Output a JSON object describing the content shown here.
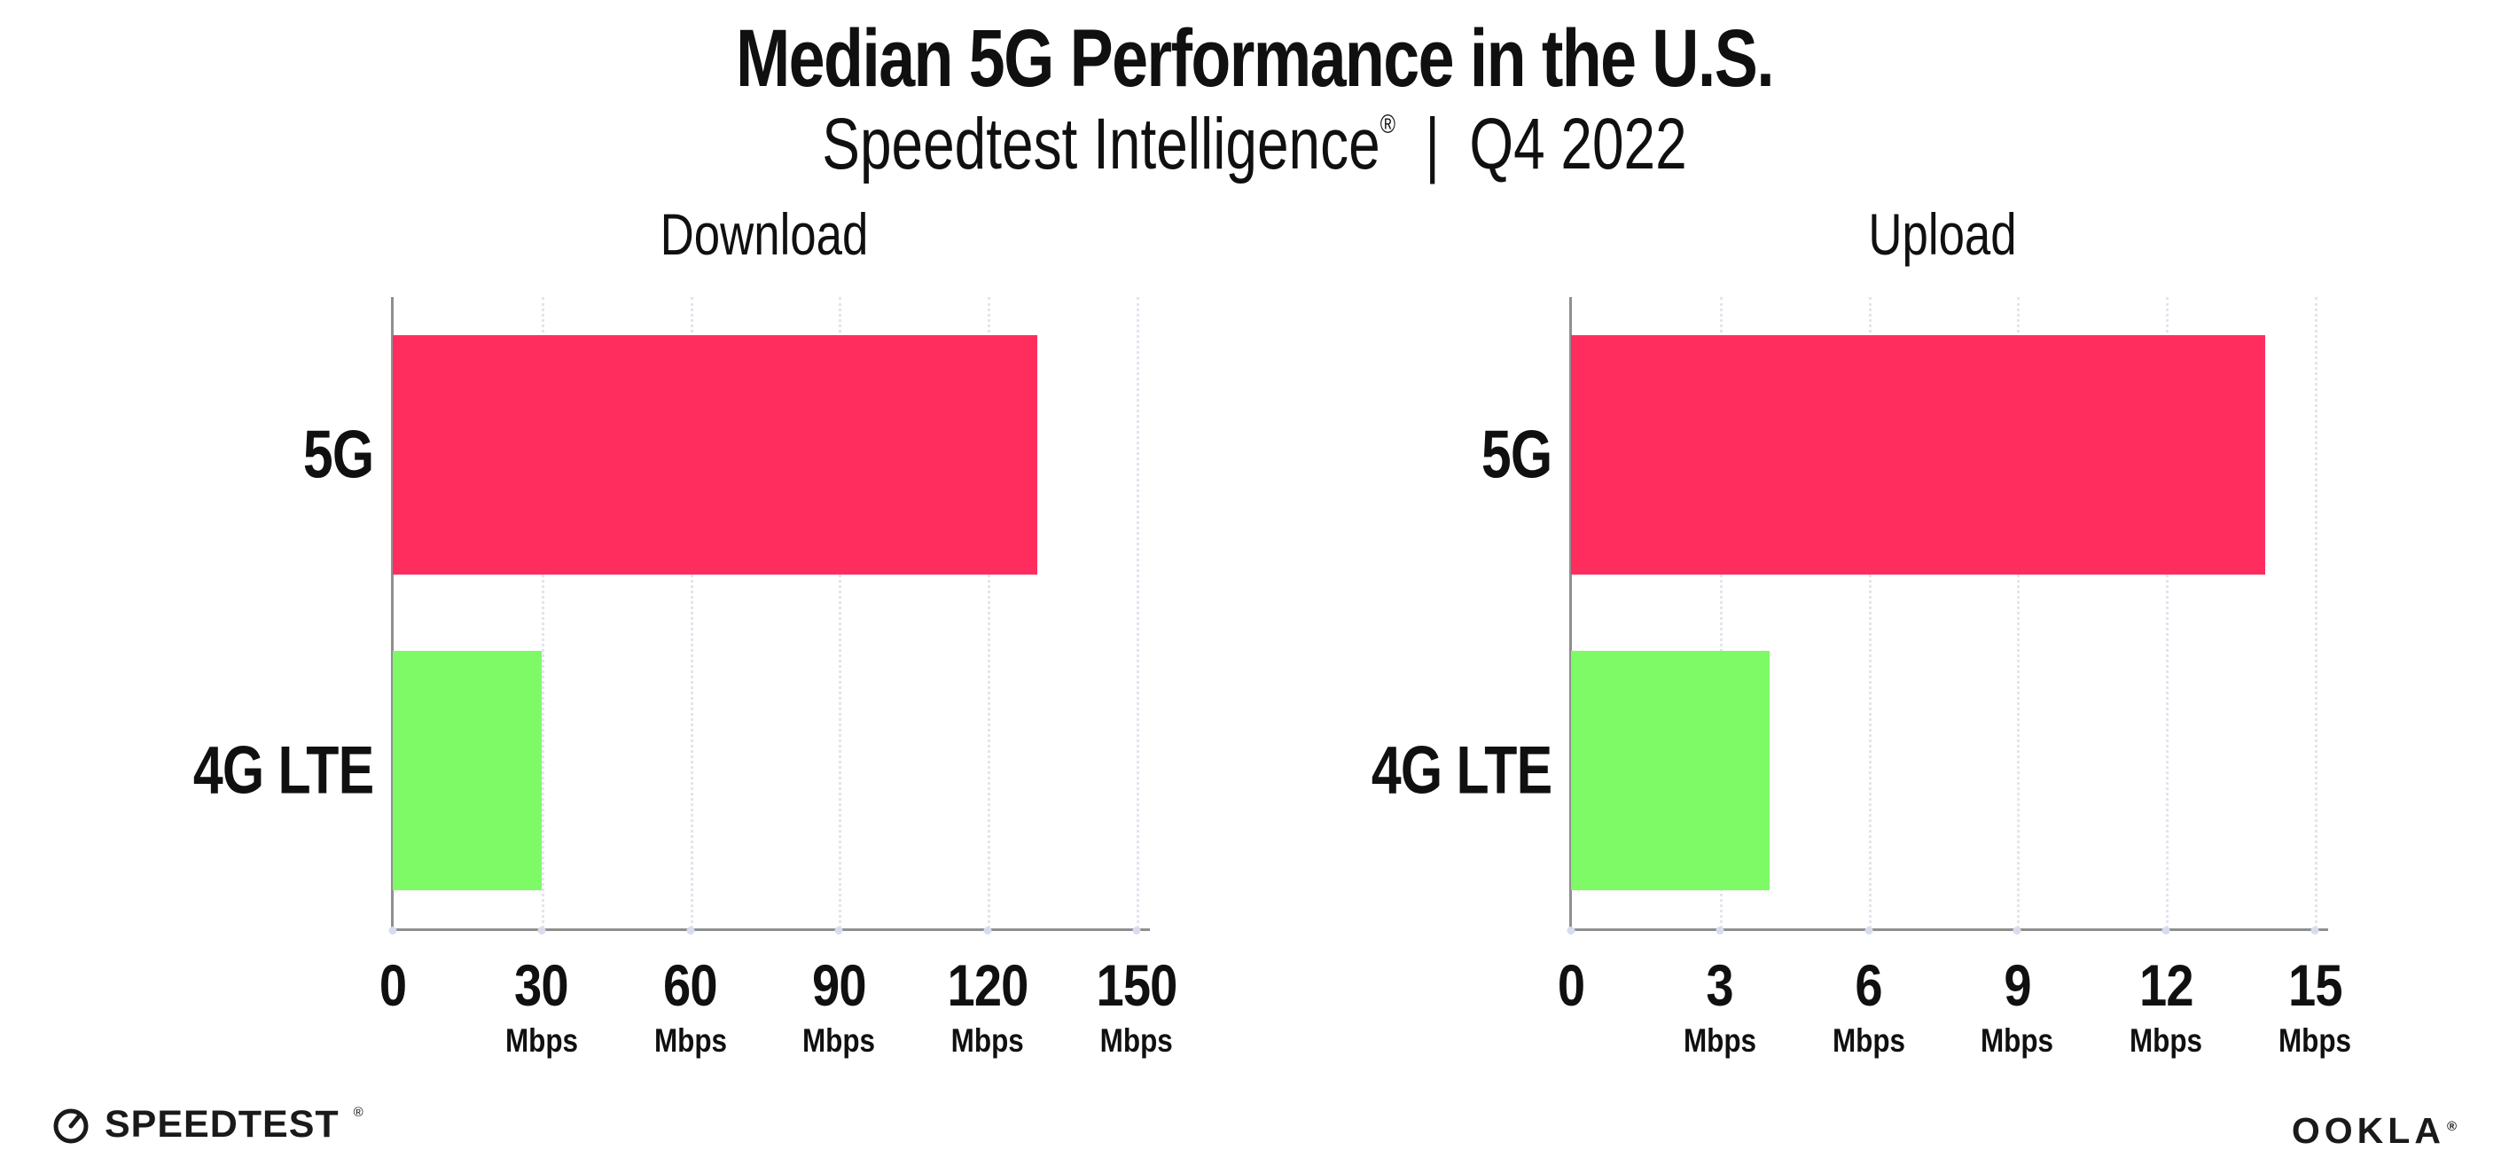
{
  "header": {
    "title": "Median 5G Performance in the U.S.",
    "subtitle_brand": "Speedtest Intelligence",
    "subtitle_reg": "®",
    "subtitle_separator": "|",
    "subtitle_period": "Q4 2022"
  },
  "footer": {
    "speedtest_label": "SPEEDTEST",
    "speedtest_reg": "®",
    "ookla_label": "OOKLA",
    "ookla_reg": "®"
  },
  "colors": {
    "bar_5g": "#ff2d5e",
    "bar_4g_lte": "#7dfa66",
    "axis": "#8f8f8f",
    "gridline": "#e3e4ee",
    "tick_dot": "#d8dcee",
    "text": "#101010",
    "background": "#ffffff"
  },
  "chart_data": [
    {
      "type": "bar",
      "orientation": "horizontal",
      "title": "Download",
      "unit": "Mbps",
      "categories": [
        "5G",
        "4G LTE"
      ],
      "values": [
        130,
        30
      ],
      "xlim": [
        0,
        150
      ],
      "xticks": [
        0,
        30,
        60,
        90,
        120,
        150
      ],
      "grid": "dotted-vertical",
      "legend": "none",
      "bar_colors": [
        "#ff2d5e",
        "#7dfa66"
      ]
    },
    {
      "type": "bar",
      "orientation": "horizontal",
      "title": "Upload",
      "unit": "Mbps",
      "categories": [
        "5G",
        "4G LTE"
      ],
      "values": [
        14,
        4
      ],
      "xlim": [
        0,
        15
      ],
      "xticks": [
        0,
        3,
        6,
        9,
        12,
        15
      ],
      "grid": "dotted-vertical",
      "legend": "none",
      "bar_colors": [
        "#ff2d5e",
        "#7dfa66"
      ]
    }
  ]
}
